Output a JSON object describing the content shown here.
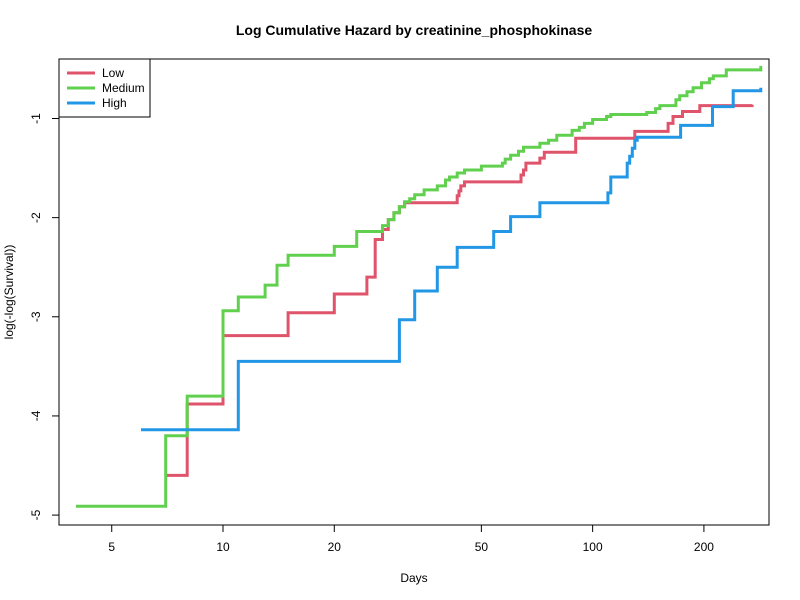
{
  "chart_data": {
    "type": "line",
    "title": "Log Cumulative Hazard by creatinine_phosphokinase",
    "xlabel": "Days",
    "ylabel": "log(-log(Survival))",
    "xscale": "log",
    "xlim": [
      3.6,
      300
    ],
    "ylim": [
      -5.1,
      -0.4
    ],
    "xticks": [
      5,
      10,
      20,
      50,
      100,
      200
    ],
    "yticks": [
      -5,
      -4,
      -3,
      -2,
      -1
    ],
    "grid": false,
    "legend_position": "top-left",
    "series": [
      {
        "name": "Low",
        "color": "#DF536B",
        "steps": [
          [
            7,
            -4.6
          ],
          [
            8,
            -3.88
          ],
          [
            10,
            -3.19
          ],
          [
            15,
            -2.96
          ],
          [
            20,
            -2.77
          ],
          [
            24.5,
            -2.6
          ],
          [
            25.8,
            -2.22
          ],
          [
            27,
            -2.12
          ],
          [
            28,
            -2.02
          ],
          [
            29,
            -1.95
          ],
          [
            30,
            -1.89
          ],
          [
            31,
            -1.85
          ],
          [
            43,
            -1.78
          ],
          [
            43.5,
            -1.73
          ],
          [
            44,
            -1.68
          ],
          [
            45,
            -1.64
          ],
          [
            64,
            -1.57
          ],
          [
            65,
            -1.52
          ],
          [
            66,
            -1.45
          ],
          [
            72,
            -1.4
          ],
          [
            74,
            -1.34
          ],
          [
            90,
            -1.2
          ],
          [
            130,
            -1.13
          ],
          [
            160,
            -1.05
          ],
          [
            165,
            -0.98
          ],
          [
            175,
            -0.93
          ],
          [
            195,
            -0.87
          ],
          [
            270,
            -0.86
          ]
        ]
      },
      {
        "name": "Medium",
        "color": "#61D04F",
        "steps": [
          [
            4,
            -4.91
          ],
          [
            7,
            -4.2
          ],
          [
            8,
            -3.8
          ],
          [
            10,
            -2.94
          ],
          [
            11,
            -2.8
          ],
          [
            13,
            -2.68
          ],
          [
            14,
            -2.48
          ],
          [
            15,
            -2.38
          ],
          [
            20,
            -2.29
          ],
          [
            23,
            -2.14
          ],
          [
            27,
            -2.08
          ],
          [
            28,
            -2.02
          ],
          [
            29,
            -1.95
          ],
          [
            30,
            -1.89
          ],
          [
            31,
            -1.84
          ],
          [
            32,
            -1.81
          ],
          [
            33,
            -1.77
          ],
          [
            35,
            -1.72
          ],
          [
            38,
            -1.68
          ],
          [
            40,
            -1.62
          ],
          [
            41,
            -1.59
          ],
          [
            43,
            -1.55
          ],
          [
            45,
            -1.52
          ],
          [
            50,
            -1.48
          ],
          [
            57,
            -1.45
          ],
          [
            58,
            -1.41
          ],
          [
            60,
            -1.37
          ],
          [
            63,
            -1.33
          ],
          [
            65,
            -1.29
          ],
          [
            72,
            -1.25
          ],
          [
            76,
            -1.22
          ],
          [
            80,
            -1.17
          ],
          [
            88,
            -1.12
          ],
          [
            92,
            -1.09
          ],
          [
            95,
            -1.05
          ],
          [
            100,
            -1.01
          ],
          [
            109,
            -0.98
          ],
          [
            112,
            -0.96
          ],
          [
            140,
            -0.94
          ],
          [
            148,
            -0.9
          ],
          [
            152,
            -0.87
          ],
          [
            168,
            -0.81
          ],
          [
            172,
            -0.77
          ],
          [
            180,
            -0.73
          ],
          [
            187,
            -0.69
          ],
          [
            197,
            -0.64
          ],
          [
            207,
            -0.6
          ],
          [
            212,
            -0.57
          ],
          [
            230,
            -0.51
          ],
          [
            285,
            -0.47
          ]
        ]
      },
      {
        "name": "High",
        "color": "#2297E6",
        "steps": [
          [
            6,
            -4.14
          ],
          [
            11,
            -3.45
          ],
          [
            30,
            -3.03
          ],
          [
            33,
            -2.74
          ],
          [
            38,
            -2.5
          ],
          [
            43,
            -2.3
          ],
          [
            54,
            -2.14
          ],
          [
            60,
            -1.99
          ],
          [
            72,
            -1.85
          ],
          [
            110,
            -1.75
          ],
          [
            112,
            -1.59
          ],
          [
            124,
            -1.45
          ],
          [
            126,
            -1.38
          ],
          [
            128,
            -1.3
          ],
          [
            130,
            -1.22
          ],
          [
            132,
            -1.19
          ],
          [
            173,
            -1.07
          ],
          [
            211,
            -0.88
          ],
          [
            240,
            -0.72
          ],
          [
            285,
            -0.69
          ]
        ]
      }
    ]
  }
}
